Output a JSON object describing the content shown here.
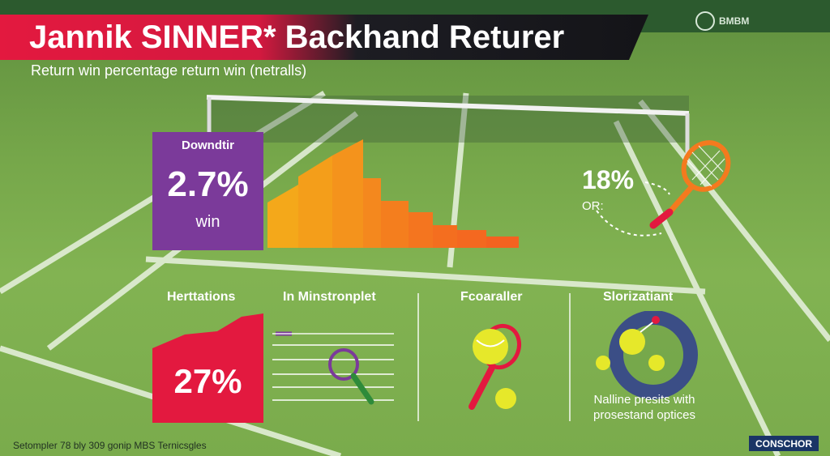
{
  "header": {
    "title": "Jannik SINNER* Backhand Returer",
    "subtitle": "Return win percentage return win (netralls)",
    "logo_text": "BMBM"
  },
  "panel_downdtir": {
    "label": "Downdtir",
    "value": "2.7%",
    "sub": "win"
  },
  "stat_right": {
    "value": "18%",
    "or_label": "OR:"
  },
  "sections": {
    "a": "Herttations",
    "b": "In Minstronplet",
    "c": "Fcoaraller",
    "d": "Slorizatiant"
  },
  "panel_red": {
    "value": "27%"
  },
  "note": "Nalline presits with prosestand optices",
  "footer": "Setompler 78 bly 309 gonip MBS Ternicsgles",
  "badge": "CONSCHOR",
  "colors": {
    "purple": "#7b3a9a",
    "red": "#e3193f",
    "orange": "#f47a1e",
    "yellow": "#f4a81a",
    "navy": "#3b4e86",
    "ball": "#e6e82a"
  },
  "icons": [
    "tennis-racket-icon",
    "tennis-ball-icon",
    "donut-ring-icon"
  ]
}
